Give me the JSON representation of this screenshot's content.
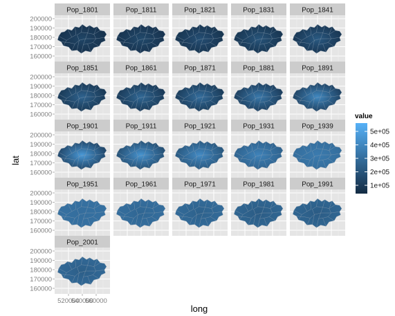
{
  "chart_data": {
    "type": "heatmap",
    "subtype": "faceted-choropleth-map",
    "xlabel": "long",
    "ylabel": "lat",
    "facets": [
      {
        "label": "Pop_1801",
        "outer": 0.06,
        "center": 0.2
      },
      {
        "label": "Pop_1811",
        "outer": 0.07,
        "center": 0.23
      },
      {
        "label": "Pop_1821",
        "outer": 0.08,
        "center": 0.27
      },
      {
        "label": "Pop_1831",
        "outer": 0.09,
        "center": 0.31
      },
      {
        "label": "Pop_1841",
        "outer": 0.1,
        "center": 0.35
      },
      {
        "label": "Pop_1851",
        "outer": 0.11,
        "center": 0.42
      },
      {
        "label": "Pop_1861",
        "outer": 0.12,
        "center": 0.46
      },
      {
        "label": "Pop_1871",
        "outer": 0.14,
        "center": 0.5
      },
      {
        "label": "Pop_1881",
        "outer": 0.16,
        "center": 0.58
      },
      {
        "label": "Pop_1891",
        "outer": 0.19,
        "center": 0.7
      },
      {
        "label": "Pop_1901",
        "outer": 0.22,
        "center": 0.82
      },
      {
        "label": "Pop_1911",
        "outer": 0.28,
        "center": 0.78
      },
      {
        "label": "Pop_1921",
        "outer": 0.34,
        "center": 0.72
      },
      {
        "label": "Pop_1931",
        "outer": 0.42,
        "center": 0.66
      },
      {
        "label": "Pop_1939",
        "outer": 0.5,
        "center": 0.6
      },
      {
        "label": "Pop_1951",
        "outer": 0.52,
        "center": 0.5
      },
      {
        "label": "Pop_1961",
        "outer": 0.5,
        "center": 0.44
      },
      {
        "label": "Pop_1971",
        "outer": 0.48,
        "center": 0.4
      },
      {
        "label": "Pop_1981",
        "outer": 0.44,
        "center": 0.36
      },
      {
        "label": "Pop_1991",
        "outer": 0.44,
        "center": 0.36
      },
      {
        "label": "Pop_2001",
        "outer": 0.46,
        "center": 0.38
      }
    ],
    "y_ticks": [
      "200000",
      "190000",
      "180000",
      "170000",
      "160000"
    ],
    "x_ticks": [
      "520000",
      "540000",
      "560000"
    ],
    "legend": {
      "title": "value",
      "labels": [
        "5e+05",
        "4e+05",
        "3e+05",
        "2e+05",
        "1e+05"
      ],
      "low_color": "#132B43",
      "high_color": "#56B1F7"
    }
  }
}
